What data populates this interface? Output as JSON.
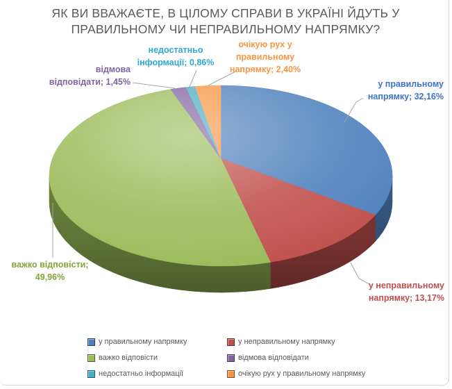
{
  "title": {
    "lines": [
      "ЯК ВИ ВВАЖАЄТЕ, В ЦІЛОМУ СПРАВИ В УКРАЇНІ ЙДУТЬ У",
      "ПРАВИЛЬНОМУ ЧИ НЕПРАВИЛЬНОМУ НАПРЯМКУ?"
    ],
    "color": "#595959"
  },
  "chart_data": {
    "type": "pie",
    "style": "3d",
    "title": "ЯК ВИ ВВАЖАЄТЕ, В ЦІЛОМУ СПРАВИ В УКРАЇНІ ЙДУТЬ У ПРАВИЛЬНОМУ ЧИ НЕПРАВИЛЬНОМУ НАПРЯМКУ?",
    "unit": "%",
    "start_angle": 0,
    "direction": "clockwise",
    "legend_position": "bottom",
    "categories": [
      "у правильному напрямку",
      "у неправильному напрямку",
      "важко відповісти",
      "відмова відповідати",
      "недостатньо інформації",
      "очікую рух у правильному напрямку"
    ],
    "values": [
      32.16,
      13.17,
      49.96,
      1.45,
      0.86,
      2.4
    ],
    "value_labels": [
      "32,16%",
      "13,17%",
      "49,96%",
      "1,45%",
      "0,86%",
      "2,40%"
    ],
    "colors": [
      "#4F81BD",
      "#C0504D",
      "#9BBB59",
      "#8064A2",
      "#4BACC6",
      "#F79646"
    ],
    "label_colors": [
      "#3E73C8",
      "#C0504D",
      "#7FA63C",
      "#8064A2",
      "#2FA8D5",
      "#F79646"
    ],
    "callouts": [
      {
        "name": "right-direction",
        "lines": [
          "у правильному",
          "напрямку; 32,16%"
        ]
      },
      {
        "name": "wrong-direction",
        "lines": [
          "у неправильному",
          "напрямку; 13,17%"
        ]
      },
      {
        "name": "hard-to-answer",
        "lines": [
          "важко відповісти;",
          "49,96%"
        ]
      },
      {
        "name": "refuse-to-answer",
        "lines": [
          "відмова",
          "відповідати; 1,45%"
        ]
      },
      {
        "name": "not-enough-info",
        "lines": [
          "недостатньо",
          "інформації; 0,86%"
        ]
      },
      {
        "name": "expect-movement",
        "lines": [
          "очікую рух у",
          "правильному",
          "напрямку; 2,40%"
        ]
      }
    ]
  },
  "legend": {
    "items": [
      {
        "label": "у правильному напрямку"
      },
      {
        "label": "у неправильному напрямку"
      },
      {
        "label": "важко відповісти"
      },
      {
        "label": "відмова відповідати"
      },
      {
        "label": "недостатньо інформації"
      },
      {
        "label": "очікую рух у правильному напрямку"
      }
    ]
  }
}
